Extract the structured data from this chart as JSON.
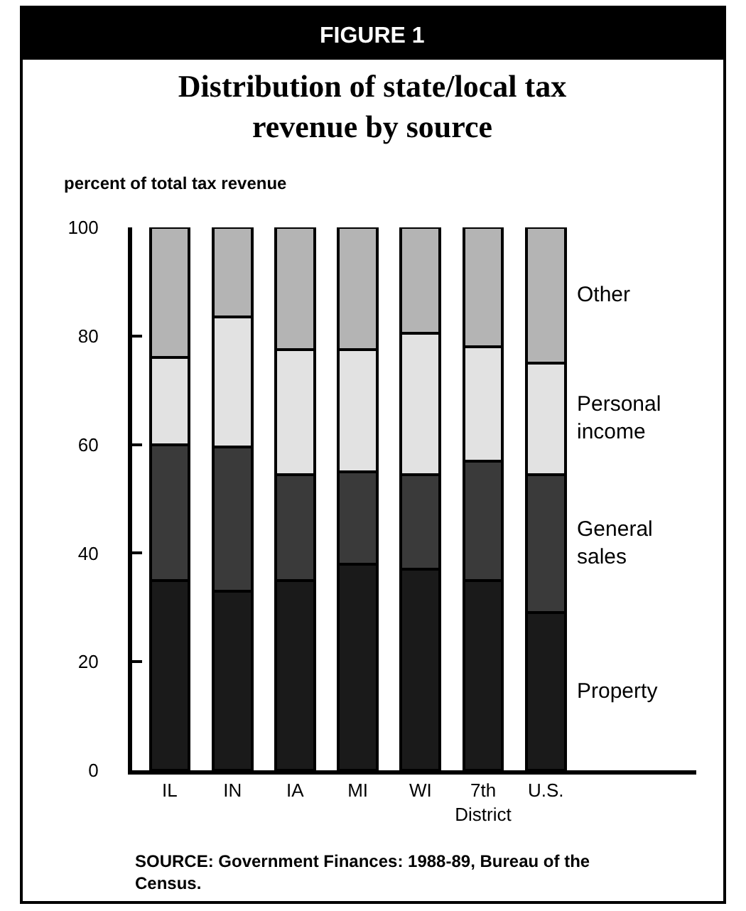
{
  "chart_data": {
    "type": "bar",
    "stacked": true,
    "title": "Distribution of state/local tax revenue by source",
    "ylabel": "percent of total tax revenue",
    "categories": [
      "IL",
      "IN",
      "IA",
      "MI",
      "WI",
      "7th District",
      "U.S."
    ],
    "series": [
      {
        "name": "Property",
        "color": "#1a1a1a",
        "values": [
          35,
          33,
          35,
          38,
          37,
          35,
          29
        ]
      },
      {
        "name": "General sales",
        "color": "#3a3a3a",
        "values": [
          25,
          26.5,
          19.5,
          17,
          17.5,
          22,
          25.5
        ]
      },
      {
        "name": "Personal income",
        "color": "#e2e2e2",
        "values": [
          16,
          24,
          23,
          22.5,
          26,
          21,
          20.5
        ]
      },
      {
        "name": "Other",
        "color": "#b4b4b4",
        "values": [
          24,
          16.5,
          22.5,
          22.5,
          19.5,
          22,
          25
        ]
      }
    ],
    "ylim": [
      0,
      100
    ],
    "yticks": [
      0,
      20,
      40,
      60,
      80,
      100
    ],
    "legend": false,
    "annotations": [
      "FIGURE 1",
      "SOURCE: Government Finances: 1988-89, Bureau of the Census."
    ]
  }
}
